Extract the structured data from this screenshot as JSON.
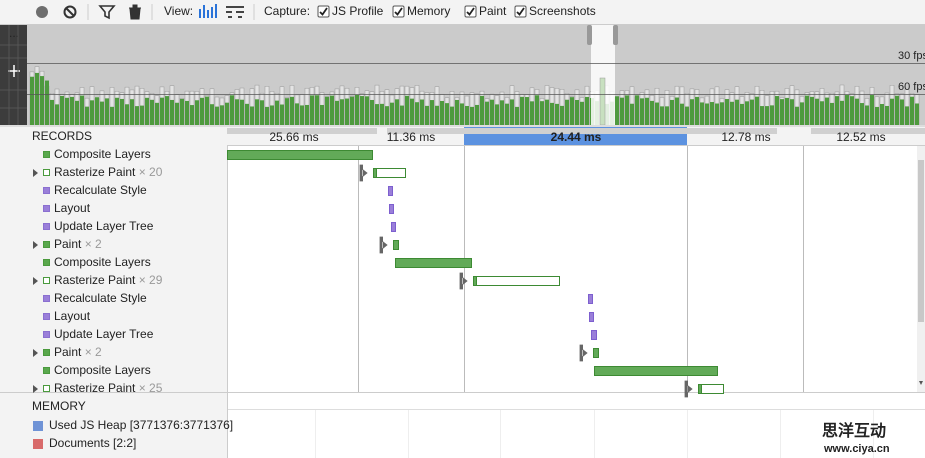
{
  "toolbar": {
    "view_label": "View:",
    "capture_label": "Capture:",
    "options": [
      "JS Profile",
      "Memory",
      "Paint",
      "Screenshots"
    ]
  },
  "overview": {
    "fps_labels": [
      "30 fps",
      "60 fps"
    ]
  },
  "ruler": {
    "labels": [
      "25.66 ms",
      "11.36 ms",
      "24.44 ms",
      "12.78 ms",
      "12.52 ms"
    ]
  },
  "records": {
    "title": "RECORDS",
    "rows": [
      {
        "name": "Composite Layers"
      },
      {
        "name": "Rasterize Paint",
        "count": "× 20"
      },
      {
        "name": "Recalculate Style"
      },
      {
        "name": "Layout"
      },
      {
        "name": "Update Layer Tree"
      },
      {
        "name": "Paint",
        "count": "× 2"
      },
      {
        "name": "Composite Layers"
      },
      {
        "name": "Rasterize Paint",
        "count": "× 29"
      },
      {
        "name": "Recalculate Style"
      },
      {
        "name": "Layout"
      },
      {
        "name": "Update Layer Tree"
      },
      {
        "name": "Paint",
        "count": "× 2"
      },
      {
        "name": "Composite Layers"
      },
      {
        "name": "Rasterize Paint",
        "count": "× 25"
      }
    ]
  },
  "memory": {
    "title": "MEMORY",
    "items": [
      "Used JS Heap [3771376:3771376]",
      "Documents [2:2]"
    ]
  },
  "watermark": {
    "title": "思洋互动",
    "url": "www.ciya.cn"
  }
}
